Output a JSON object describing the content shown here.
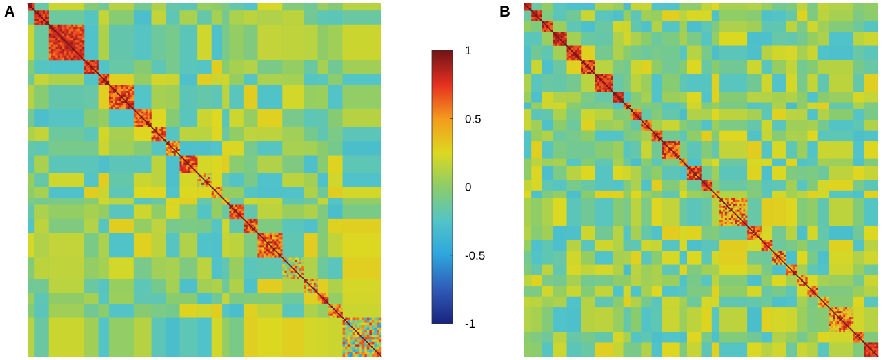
{
  "panels": [
    {
      "label": "A",
      "chart_data": {
        "type": "heatmap",
        "title": "",
        "xlabel": "",
        "ylabel": "",
        "colorscale_range": [
          -1,
          1
        ],
        "diagonal_value": 1,
        "background_value": 0,
        "block_boundaries_fraction": [
          0,
          0.02,
          0.06,
          0.16,
          0.2,
          0.23,
          0.3,
          0.35,
          0.39,
          0.43,
          0.48,
          0.52,
          0.55,
          0.57,
          0.61,
          0.65,
          0.72,
          0.78,
          0.82,
          0.85,
          0.89,
          1.0
        ],
        "block_mean_correlation": [
          0.85,
          0.8,
          0.8,
          0.78,
          0.75,
          0.72,
          0.7,
          0.6,
          0.55,
          0.7,
          0.45,
          0.5,
          0.6,
          0.7,
          0.7,
          0.65,
          0.3,
          0.4,
          0.55,
          0.5,
          0.2
        ]
      }
    },
    {
      "label": "B",
      "chart_data": {
        "type": "heatmap",
        "title": "",
        "xlabel": "",
        "ylabel": "",
        "colorscale_range": [
          -1,
          1
        ],
        "diagonal_value": 1,
        "background_value": 0,
        "block_boundaries_fraction": [
          0,
          0.02,
          0.05,
          0.08,
          0.12,
          0.16,
          0.2,
          0.25,
          0.28,
          0.3,
          0.33,
          0.36,
          0.39,
          0.44,
          0.46,
          0.5,
          0.53,
          0.55,
          0.63,
          0.67,
          0.7,
          0.74,
          0.77,
          0.8,
          0.83,
          0.86,
          0.93,
          0.96,
          1.0
        ],
        "block_mean_correlation": [
          0.8,
          0.8,
          0.7,
          0.8,
          0.8,
          0.75,
          0.8,
          0.8,
          0.6,
          0.7,
          0.7,
          0.7,
          0.7,
          0.6,
          0.7,
          0.75,
          0.6,
          0.5,
          0.6,
          0.6,
          0.5,
          0.6,
          0.5,
          0.5,
          0.5,
          0.55,
          0.6,
          0.8
        ]
      }
    }
  ],
  "colorbar": {
    "min": -1,
    "max": 1,
    "ticks": [
      {
        "value": 1,
        "label": "1"
      },
      {
        "value": 0.5,
        "label": "0.5"
      },
      {
        "value": 0,
        "label": "0"
      },
      {
        "value": -0.5,
        "label": "-0.5"
      },
      {
        "value": -1,
        "label": "-1"
      }
    ],
    "colors": {
      "neg1": "#1a237e",
      "neg075": "#2f5bb7",
      "neg05": "#2ea5dd",
      "neg025": "#52c4c8",
      "zero": "#8ccc6a",
      "pos025": "#ddd820",
      "pos05": "#f49a1d",
      "pos075": "#e52f20",
      "pos1": "#6e1416"
    }
  }
}
